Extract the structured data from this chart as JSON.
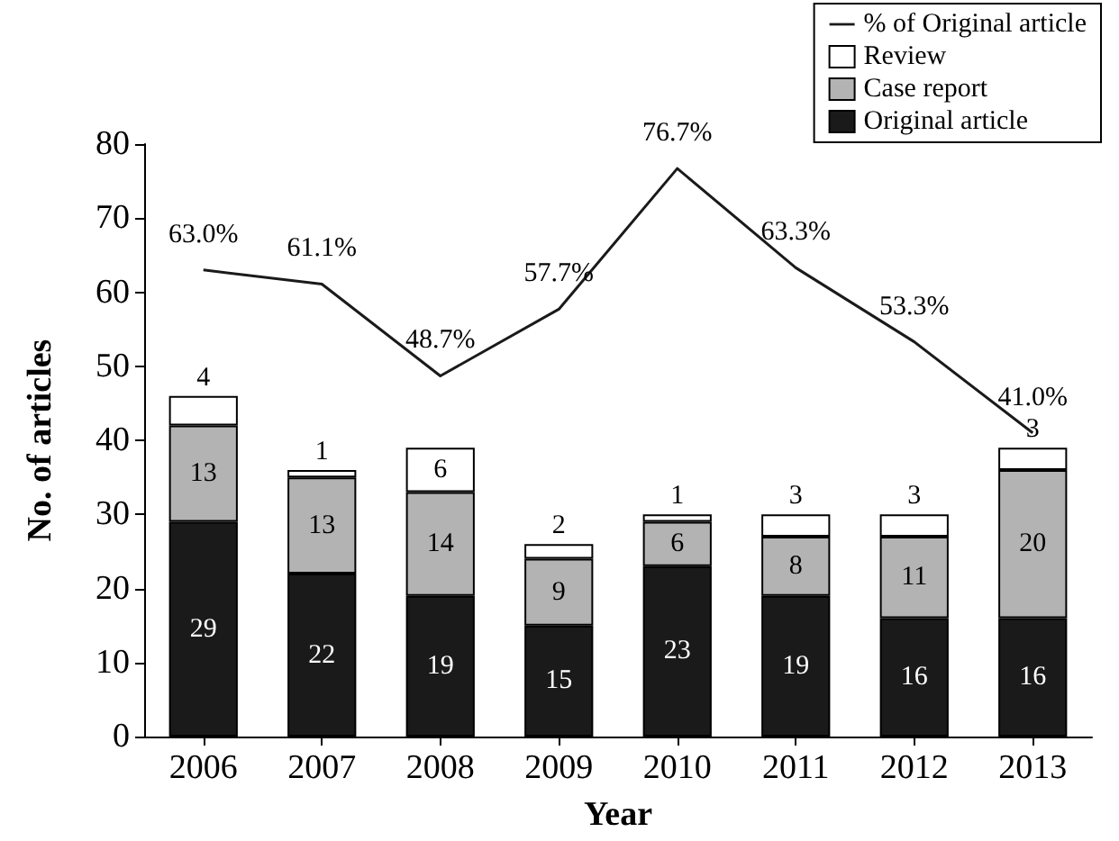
{
  "chart_data": {
    "type": "bar",
    "stacked": true,
    "xlabel": "Year",
    "ylabel": "No. of articles",
    "categories": [
      "2006",
      "2007",
      "2008",
      "2009",
      "2010",
      "2011",
      "2012",
      "2013"
    ],
    "series": [
      {
        "name": "Original article",
        "color": "#1a1a1a",
        "values": [
          29,
          22,
          19,
          15,
          23,
          19,
          16,
          16
        ],
        "value_labels": [
          "29",
          "22",
          "19",
          "15",
          "23",
          "19",
          "16",
          "16"
        ]
      },
      {
        "name": "Case report",
        "color": "#b3b3b3",
        "values": [
          13,
          13,
          14,
          9,
          6,
          8,
          11,
          20
        ],
        "value_labels": [
          "13",
          "13",
          "14",
          "9",
          "6",
          "8",
          "11",
          "20"
        ]
      },
      {
        "name": "Review",
        "color": "#ffffff",
        "values": [
          4,
          1,
          6,
          2,
          1,
          3,
          3,
          3
        ],
        "value_labels": [
          "4",
          "1",
          "6",
          "2",
          "1",
          "3",
          "3",
          "3"
        ]
      },
      {
        "name": "% of Original article",
        "type": "line",
        "color": "#1a1a1a",
        "values": [
          63.0,
          61.1,
          48.7,
          57.7,
          76.7,
          63.3,
          53.3,
          41.0
        ],
        "value_labels": [
          "63.0%",
          "61.1%",
          "48.7%",
          "57.7%",
          "76.7%",
          "63.3%",
          "53.3%",
          "41.0%"
        ]
      }
    ],
    "ylim": [
      0,
      80
    ],
    "yticks": [
      0,
      10,
      20,
      30,
      40,
      50,
      60,
      70,
      80
    ],
    "grid": false,
    "legend": "top right",
    "marker": "none"
  }
}
